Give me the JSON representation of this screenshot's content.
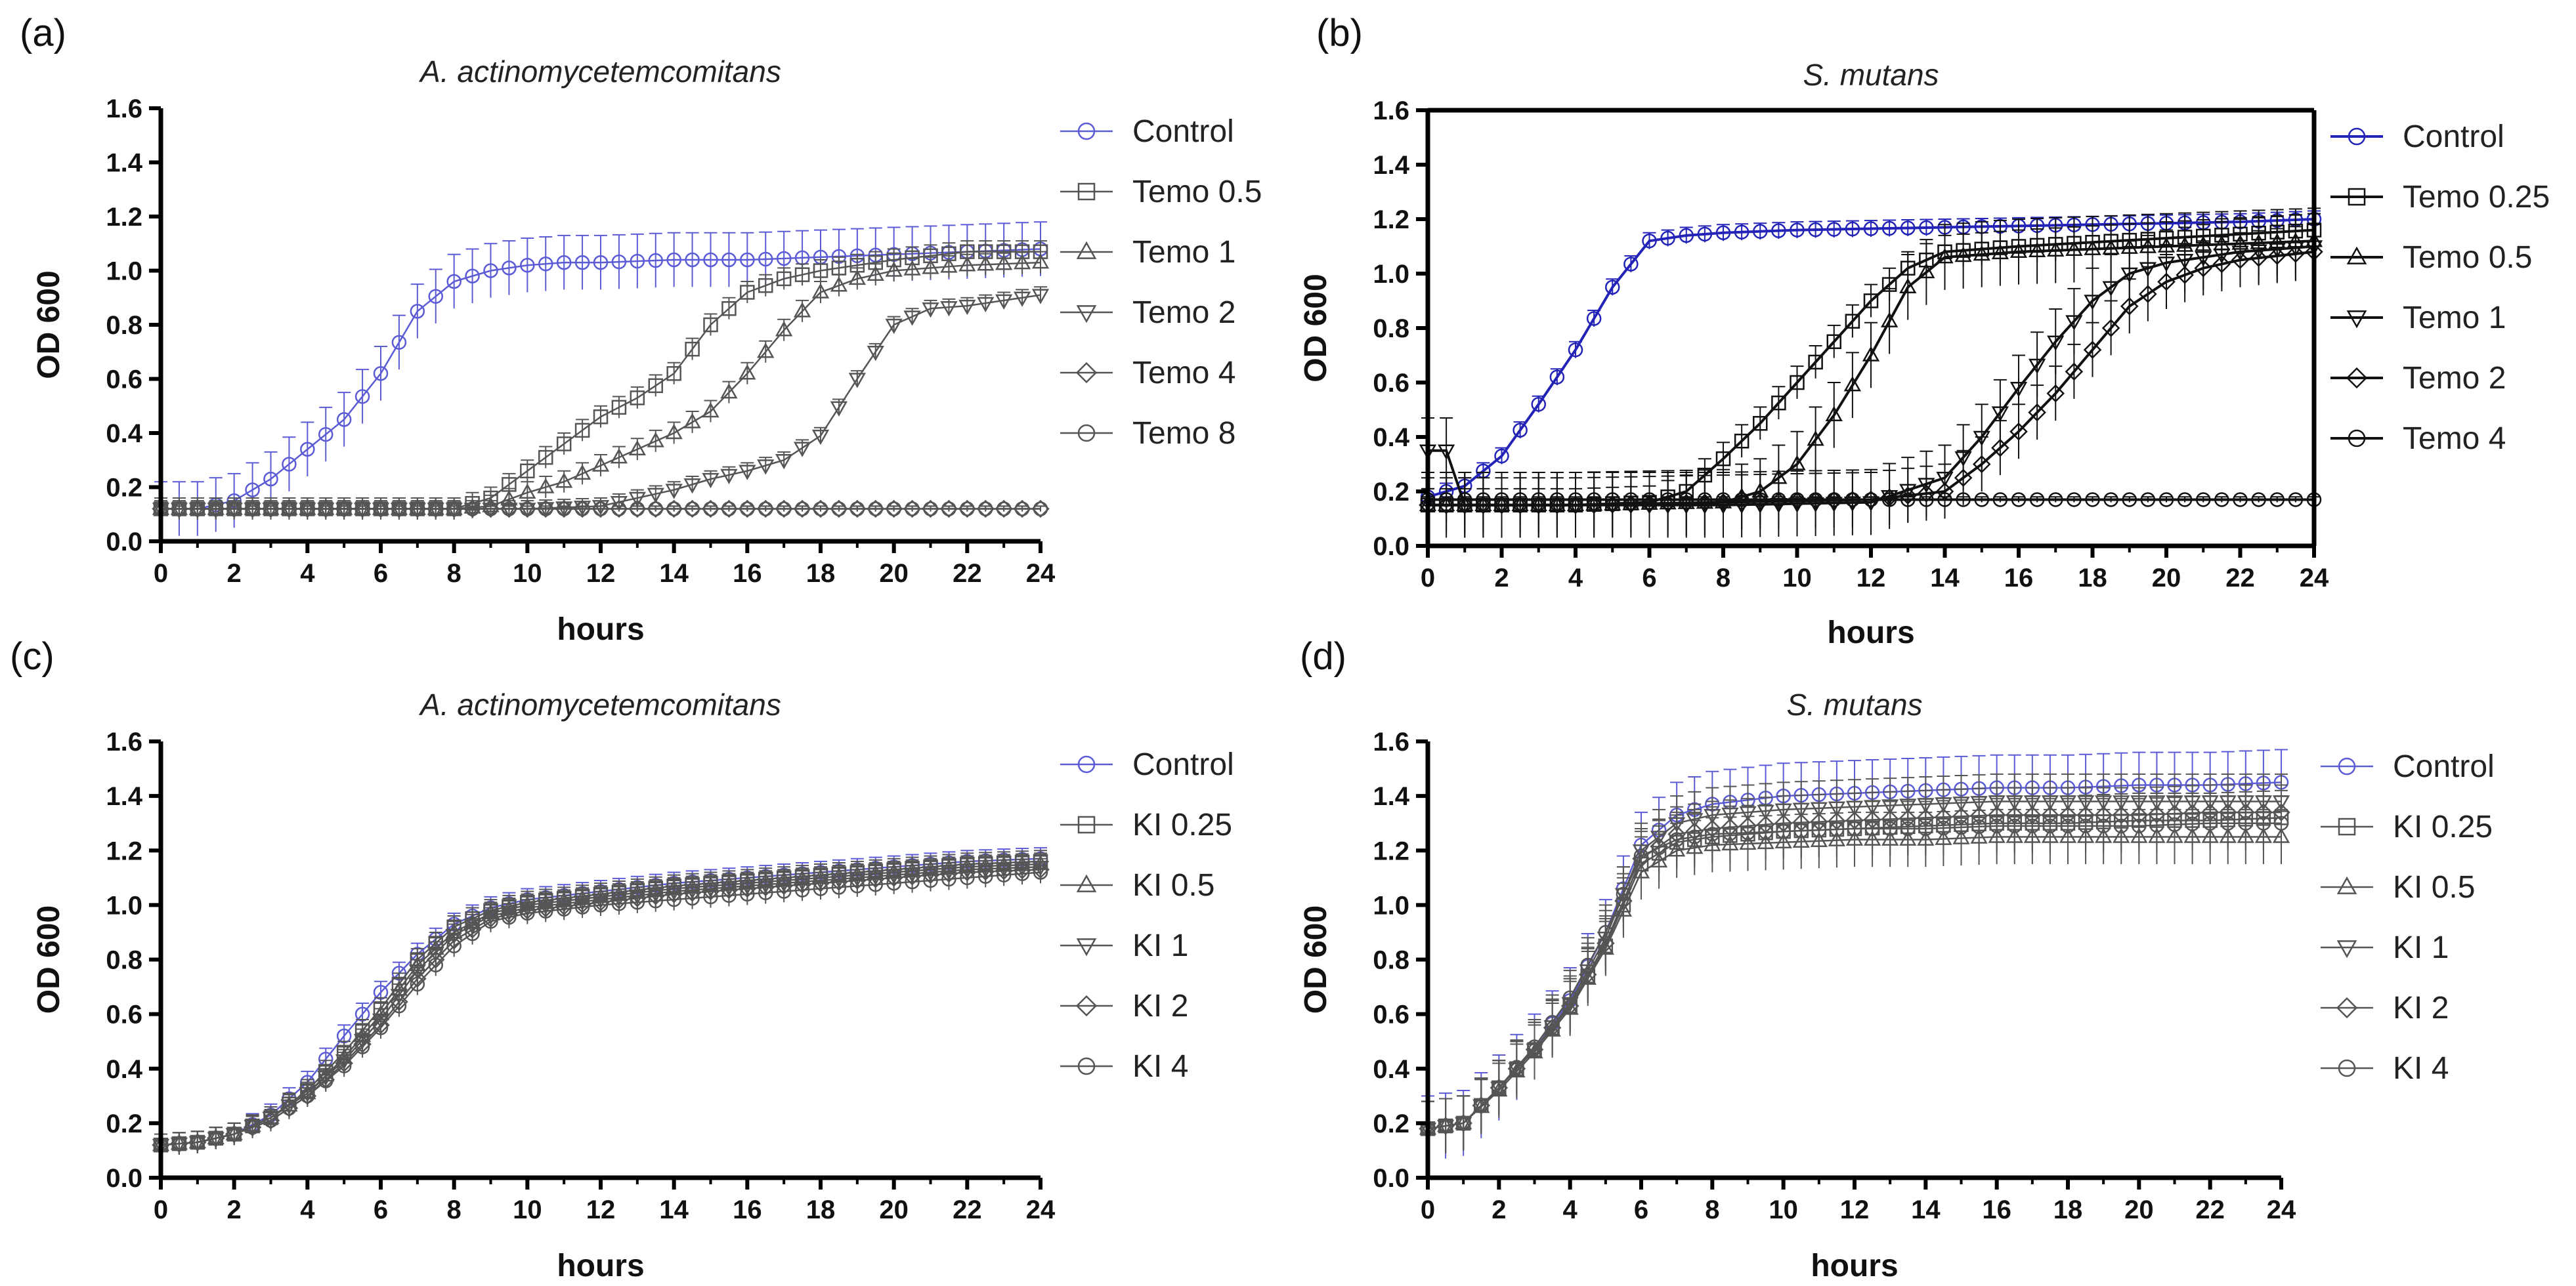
{
  "chart_data": [
    {
      "type": "line",
      "panel": "(a)",
      "title": "A. actinomycetemcomitans",
      "xlabel": "hours",
      "ylabel": "OD 600",
      "xlim": [
        0,
        24
      ],
      "ylim": [
        0,
        1.6
      ],
      "xticks": [
        "0",
        "2",
        "4",
        "6",
        "8",
        "10",
        "12",
        "14",
        "16",
        "18",
        "20",
        "22",
        "24"
      ],
      "yticks": [
        "0.0",
        "0.2",
        "0.4",
        "0.6",
        "0.8",
        "1.0",
        "1.2",
        "1.4",
        "1.6"
      ],
      "legend_position": "right",
      "series": [
        {
          "name": "Control",
          "marker": "circle",
          "color": "#5b5bd6",
          "error": 0.1,
          "x": [
            0,
            1,
            2,
            3,
            4,
            5,
            6,
            7,
            8,
            9,
            10,
            11,
            12,
            14,
            16,
            18,
            20,
            22,
            24
          ],
          "y": [
            0.12,
            0.12,
            0.15,
            0.23,
            0.34,
            0.45,
            0.62,
            0.85,
            0.96,
            1.0,
            1.02,
            1.03,
            1.03,
            1.04,
            1.04,
            1.05,
            1.06,
            1.07,
            1.08
          ]
        },
        {
          "name": "Temo 0.5",
          "marker": "square",
          "color": "#555555",
          "error": 0.04,
          "x": [
            0,
            2,
            4,
            6,
            8,
            9,
            10,
            11,
            12,
            13,
            14,
            15,
            16,
            17,
            18,
            20,
            22,
            24
          ],
          "y": [
            0.12,
            0.12,
            0.12,
            0.12,
            0.12,
            0.16,
            0.26,
            0.36,
            0.46,
            0.53,
            0.62,
            0.8,
            0.92,
            0.97,
            1.0,
            1.04,
            1.07,
            1.07
          ]
        },
        {
          "name": "Temo 1",
          "marker": "triangle-up",
          "color": "#555555",
          "error": 0.04,
          "x": [
            0,
            2,
            4,
            6,
            8,
            9,
            10,
            11,
            12,
            13,
            14,
            15,
            16,
            17,
            18,
            19,
            20,
            22,
            24
          ],
          "y": [
            0.12,
            0.12,
            0.12,
            0.12,
            0.12,
            0.13,
            0.18,
            0.22,
            0.28,
            0.34,
            0.4,
            0.48,
            0.62,
            0.78,
            0.92,
            0.97,
            1.0,
            1.02,
            1.03
          ]
        },
        {
          "name": "Temo 2",
          "marker": "triangle-down",
          "color": "#555555",
          "error": 0.03,
          "x": [
            0,
            2,
            4,
            6,
            8,
            10,
            12,
            13,
            14,
            15,
            16,
            17,
            18,
            19,
            20,
            21,
            22,
            24
          ],
          "y": [
            0.12,
            0.12,
            0.12,
            0.12,
            0.12,
            0.12,
            0.13,
            0.16,
            0.19,
            0.23,
            0.26,
            0.3,
            0.39,
            0.6,
            0.8,
            0.86,
            0.87,
            0.91
          ]
        },
        {
          "name": "Temo 4",
          "marker": "diamond",
          "color": "#555555",
          "error": 0.01,
          "x": [
            0,
            4,
            8,
            12,
            16,
            20,
            24
          ],
          "y": [
            0.12,
            0.12,
            0.12,
            0.12,
            0.12,
            0.12,
            0.12
          ]
        },
        {
          "name": "Temo 8",
          "marker": "circle",
          "color": "#555555",
          "error": 0.01,
          "x": [
            0,
            4,
            8,
            12,
            16,
            20,
            24
          ],
          "y": [
            0.12,
            0.12,
            0.12,
            0.12,
            0.12,
            0.12,
            0.12
          ]
        }
      ]
    },
    {
      "type": "line",
      "panel": "(b)",
      "title": "S. mutans",
      "xlabel": "hours",
      "ylabel": "OD 600",
      "xlim": [
        0,
        24
      ],
      "ylim": [
        0,
        1.6
      ],
      "xticks": [
        "0",
        "2",
        "4",
        "6",
        "8",
        "10",
        "12",
        "14",
        "16",
        "18",
        "20",
        "22",
        "24"
      ],
      "yticks": [
        "0.0",
        "0.2",
        "0.4",
        "0.6",
        "0.8",
        "1.0",
        "1.2",
        "1.4",
        "1.6"
      ],
      "legend_position": "right",
      "series": [
        {
          "name": "Control",
          "marker": "circle",
          "color": "#2323b8",
          "error": 0.03,
          "x": [
            0,
            1,
            2,
            3,
            4,
            5,
            6,
            7,
            8,
            10,
            14,
            18,
            22,
            24
          ],
          "y": [
            0.18,
            0.22,
            0.33,
            0.52,
            0.72,
            0.95,
            1.12,
            1.14,
            1.15,
            1.16,
            1.17,
            1.18,
            1.19,
            1.2
          ]
        },
        {
          "name": "Temo 0.25",
          "marker": "square",
          "color": "#111111",
          "error": 0.06,
          "x": [
            0,
            4,
            6,
            7,
            8,
            9,
            10,
            11,
            12,
            13,
            14,
            16,
            20,
            24
          ],
          "y": [
            0.15,
            0.15,
            0.16,
            0.2,
            0.32,
            0.45,
            0.6,
            0.75,
            0.9,
            1.02,
            1.08,
            1.1,
            1.13,
            1.16
          ]
        },
        {
          "name": "Temo 0.5",
          "marker": "triangle-up",
          "color": "#111111",
          "error": 0.12,
          "x": [
            0,
            4,
            8,
            9,
            10,
            11,
            12,
            13,
            14,
            16,
            20,
            24
          ],
          "y": [
            0.15,
            0.15,
            0.16,
            0.2,
            0.3,
            0.48,
            0.7,
            0.95,
            1.06,
            1.08,
            1.1,
            1.12
          ]
        },
        {
          "name": "Temo 1",
          "marker": "triangle-down",
          "color": "#111111",
          "error": 0.12,
          "x": [
            0,
            0.5,
            1,
            4,
            8,
            12,
            14,
            15,
            16,
            17,
            18,
            19,
            20,
            22,
            24
          ],
          "y": [
            0.35,
            0.35,
            0.15,
            0.15,
            0.15,
            0.16,
            0.25,
            0.4,
            0.58,
            0.75,
            0.9,
            1.0,
            1.04,
            1.08,
            1.1
          ]
        },
        {
          "name": "Temo 2",
          "marker": "diamond",
          "color": "#111111",
          "error": 0.1,
          "x": [
            0,
            4,
            8,
            12,
            14,
            15,
            16,
            17,
            18,
            19,
            20,
            21,
            22,
            24
          ],
          "y": [
            0.15,
            0.15,
            0.16,
            0.17,
            0.2,
            0.3,
            0.42,
            0.56,
            0.72,
            0.88,
            0.97,
            1.02,
            1.05,
            1.08
          ]
        },
        {
          "name": "Temo 4",
          "marker": "circle",
          "color": "#111111",
          "error": 0.01,
          "x": [
            0,
            4,
            8,
            12,
            16,
            20,
            24
          ],
          "y": [
            0.17,
            0.17,
            0.17,
            0.17,
            0.17,
            0.17,
            0.17
          ]
        }
      ]
    },
    {
      "type": "line",
      "panel": "(c)",
      "title": "A. actinomycetemcomitans",
      "xlabel": "hours",
      "ylabel": "OD 600",
      "xlim": [
        0,
        24
      ],
      "ylim": [
        0,
        1.6
      ],
      "xticks": [
        "0",
        "2",
        "4",
        "6",
        "8",
        "10",
        "12",
        "14",
        "16",
        "18",
        "20",
        "22",
        "24"
      ],
      "yticks": [
        "0.0",
        "0.2",
        "0.4",
        "0.6",
        "0.8",
        "1.0",
        "1.2",
        "1.4",
        "1.6"
      ],
      "legend_position": "right",
      "series": [
        {
          "name": "Control",
          "marker": "circle",
          "color": "#5b5bd6",
          "error": 0.04,
          "x": [
            0,
            1,
            2,
            3,
            4,
            5,
            6,
            7,
            8,
            9,
            10,
            12,
            14,
            16,
            18,
            20,
            22,
            24
          ],
          "y": [
            0.12,
            0.13,
            0.16,
            0.23,
            0.35,
            0.52,
            0.68,
            0.82,
            0.93,
            0.99,
            1.02,
            1.05,
            1.08,
            1.1,
            1.12,
            1.14,
            1.16,
            1.17
          ]
        },
        {
          "name": "KI 0.25",
          "marker": "square",
          "color": "#555555",
          "error": 0.04,
          "x": [
            0,
            1,
            2,
            3,
            4,
            5,
            6,
            7,
            8,
            9,
            10,
            12,
            14,
            16,
            18,
            20,
            22,
            24
          ],
          "y": [
            0.12,
            0.13,
            0.16,
            0.22,
            0.32,
            0.46,
            0.62,
            0.8,
            0.92,
            0.98,
            1.01,
            1.04,
            1.07,
            1.09,
            1.11,
            1.13,
            1.15,
            1.16
          ]
        },
        {
          "name": "KI 0.5",
          "marker": "triangle-up",
          "color": "#555555",
          "error": 0.04,
          "x": [
            0,
            1,
            2,
            3,
            4,
            5,
            6,
            7,
            8,
            9,
            10,
            12,
            14,
            16,
            18,
            20,
            22,
            24
          ],
          "y": [
            0.12,
            0.13,
            0.16,
            0.22,
            0.31,
            0.44,
            0.6,
            0.78,
            0.9,
            0.97,
            1.0,
            1.03,
            1.06,
            1.08,
            1.1,
            1.12,
            1.14,
            1.15
          ]
        },
        {
          "name": "KI 1",
          "marker": "triangle-down",
          "color": "#555555",
          "error": 0.04,
          "x": [
            0,
            1,
            2,
            3,
            4,
            5,
            6,
            7,
            8,
            9,
            10,
            12,
            14,
            16,
            18,
            20,
            22,
            24
          ],
          "y": [
            0.12,
            0.13,
            0.16,
            0.22,
            0.31,
            0.43,
            0.58,
            0.76,
            0.89,
            0.96,
            0.99,
            1.02,
            1.05,
            1.07,
            1.09,
            1.11,
            1.13,
            1.14
          ]
        },
        {
          "name": "KI 2",
          "marker": "diamond",
          "color": "#555555",
          "error": 0.04,
          "x": [
            0,
            1,
            2,
            3,
            4,
            5,
            6,
            7,
            8,
            9,
            10,
            12,
            14,
            16,
            18,
            20,
            22,
            24
          ],
          "y": [
            0.12,
            0.13,
            0.16,
            0.21,
            0.3,
            0.42,
            0.56,
            0.73,
            0.87,
            0.95,
            0.98,
            1.01,
            1.04,
            1.06,
            1.08,
            1.1,
            1.12,
            1.13
          ]
        },
        {
          "name": "KI 4",
          "marker": "circle",
          "color": "#555555",
          "error": 0.04,
          "x": [
            0,
            1,
            2,
            3,
            4,
            5,
            6,
            7,
            8,
            9,
            10,
            12,
            14,
            16,
            18,
            20,
            22,
            24
          ],
          "y": [
            0.12,
            0.13,
            0.16,
            0.21,
            0.3,
            0.41,
            0.55,
            0.71,
            0.85,
            0.94,
            0.97,
            1.0,
            1.02,
            1.04,
            1.06,
            1.08,
            1.1,
            1.12
          ]
        }
      ]
    },
    {
      "type": "line",
      "panel": "(d)",
      "title": "S. mutans",
      "xlabel": "hours",
      "ylabel": "OD 600",
      "xlim": [
        0,
        24
      ],
      "ylim": [
        0,
        1.6
      ],
      "xticks": [
        "0",
        "2",
        "4",
        "6",
        "8",
        "10",
        "12",
        "14",
        "16",
        "18",
        "20",
        "22",
        "24"
      ],
      "yticks": [
        "0.0",
        "0.2",
        "0.4",
        "0.6",
        "0.8",
        "1.0",
        "1.2",
        "1.4",
        "1.6"
      ],
      "legend_position": "right",
      "series": [
        {
          "name": "Control",
          "marker": "circle",
          "color": "#5b5bd6",
          "error": 0.12,
          "x": [
            0,
            1,
            2,
            3,
            4,
            5,
            6,
            7,
            8,
            10,
            12,
            14,
            16,
            18,
            20,
            22,
            24
          ],
          "y": [
            0.18,
            0.2,
            0.33,
            0.48,
            0.65,
            0.9,
            1.22,
            1.33,
            1.37,
            1.4,
            1.41,
            1.42,
            1.43,
            1.43,
            1.44,
            1.44,
            1.45
          ]
        },
        {
          "name": "KI 0.25",
          "marker": "square",
          "color": "#555555",
          "error": 0.1,
          "x": [
            0,
            1,
            2,
            3,
            4,
            5,
            6,
            7,
            8,
            10,
            12,
            14,
            16,
            18,
            20,
            22,
            24
          ],
          "y": [
            0.18,
            0.2,
            0.33,
            0.47,
            0.63,
            0.85,
            1.15,
            1.23,
            1.25,
            1.27,
            1.28,
            1.29,
            1.3,
            1.3,
            1.31,
            1.31,
            1.32
          ]
        },
        {
          "name": "KI 0.5",
          "marker": "triangle-up",
          "color": "#555555",
          "error": 0.1,
          "x": [
            0,
            1,
            2,
            3,
            4,
            5,
            6,
            7,
            8,
            10,
            12,
            14,
            16,
            18,
            20,
            22,
            24
          ],
          "y": [
            0.18,
            0.2,
            0.32,
            0.46,
            0.62,
            0.84,
            1.12,
            1.2,
            1.22,
            1.23,
            1.24,
            1.24,
            1.25,
            1.25,
            1.25,
            1.25,
            1.25
          ]
        },
        {
          "name": "KI 1",
          "marker": "triangle-down",
          "color": "#555555",
          "error": 0.1,
          "x": [
            0,
            1,
            2,
            3,
            4,
            5,
            6,
            7,
            8,
            10,
            12,
            14,
            16,
            18,
            20,
            22,
            24
          ],
          "y": [
            0.18,
            0.2,
            0.33,
            0.47,
            0.64,
            0.88,
            1.2,
            1.3,
            1.33,
            1.35,
            1.36,
            1.37,
            1.38,
            1.38,
            1.38,
            1.38,
            1.38
          ]
        },
        {
          "name": "KI 2",
          "marker": "diamond",
          "color": "#555555",
          "error": 0.1,
          "x": [
            0,
            1,
            2,
            3,
            4,
            5,
            6,
            7,
            8,
            10,
            12,
            14,
            16,
            18,
            20,
            22,
            24
          ],
          "y": [
            0.18,
            0.2,
            0.33,
            0.47,
            0.63,
            0.86,
            1.17,
            1.26,
            1.28,
            1.3,
            1.31,
            1.32,
            1.33,
            1.33,
            1.33,
            1.34,
            1.34
          ]
        },
        {
          "name": "KI 4",
          "marker": "circle",
          "color": "#555555",
          "error": 0.1,
          "x": [
            0,
            1,
            2,
            3,
            4,
            5,
            6,
            7,
            8,
            10,
            12,
            14,
            16,
            18,
            20,
            22,
            24
          ],
          "y": [
            0.18,
            0.2,
            0.33,
            0.48,
            0.66,
            0.9,
            1.18,
            1.24,
            1.26,
            1.27,
            1.28,
            1.28,
            1.29,
            1.29,
            1.29,
            1.3,
            1.3
          ]
        }
      ]
    }
  ]
}
